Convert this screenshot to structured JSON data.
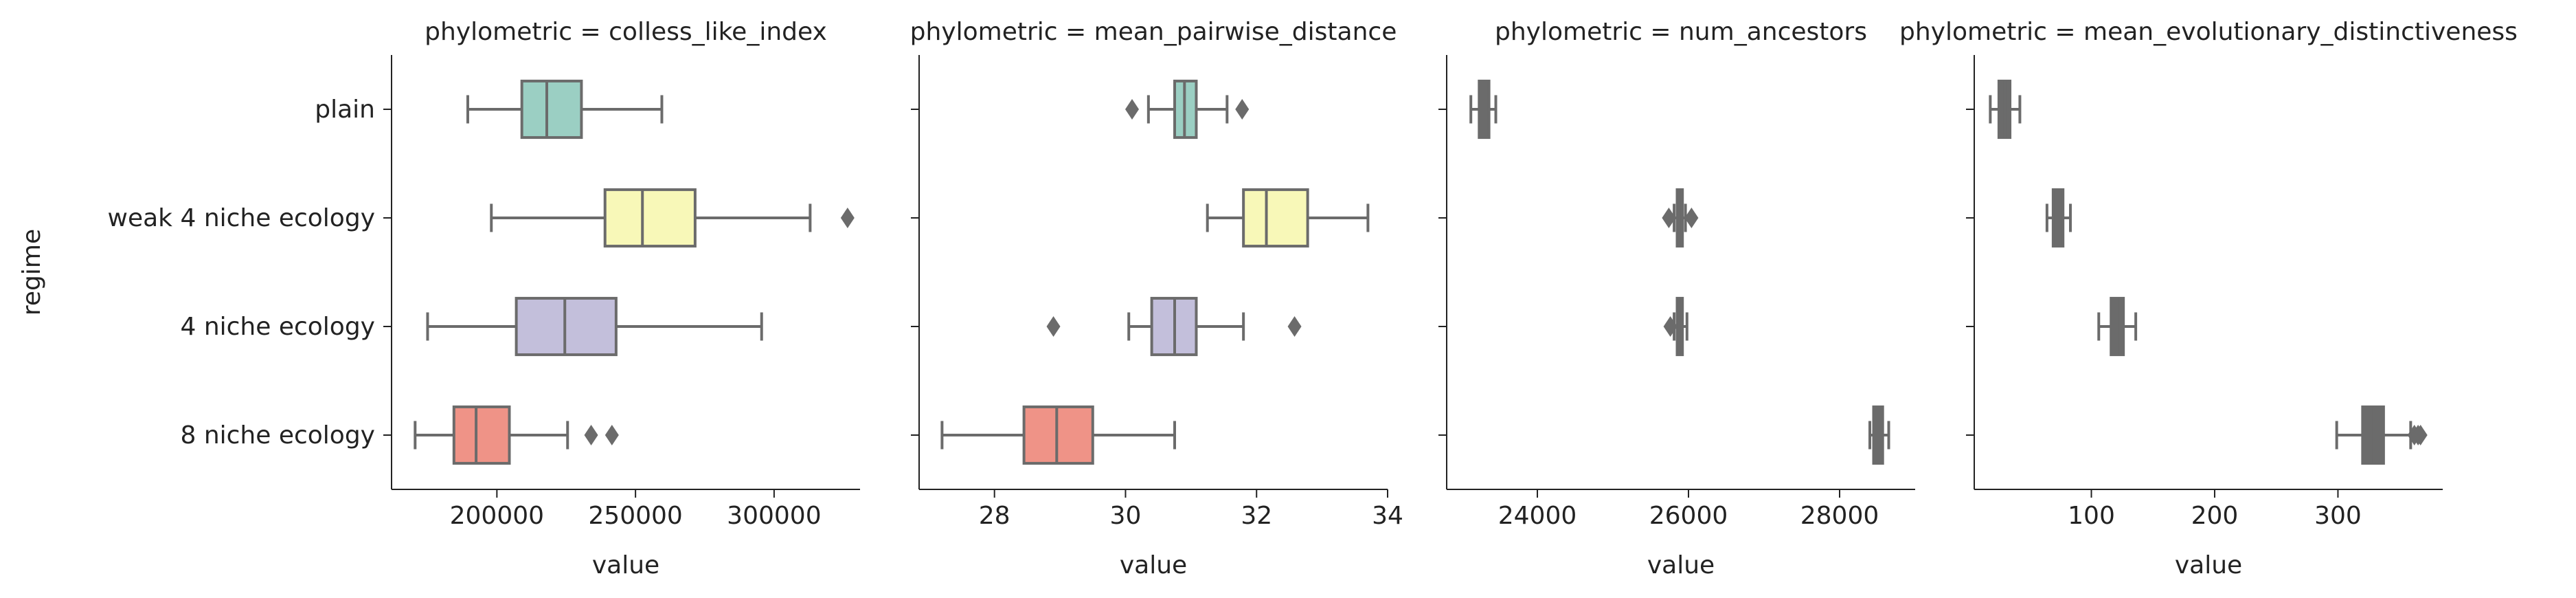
{
  "chart_data": {
    "type": "boxplot",
    "facet_label": "phylometric",
    "ylabel": "regime",
    "categories": [
      "plain",
      "weak 4 niche ecology",
      "4 niche ecology",
      "8 niche ecology"
    ],
    "colors": [
      "#9bcfc3",
      "#f8f8b8",
      "#c3bfdb",
      "#ef9387"
    ],
    "colored_facets": [
      true,
      true,
      false,
      false
    ],
    "panels": [
      {
        "title": "phylometric = colless_like_index",
        "xlabel": "value",
        "xlim": [
          162000,
          331000
        ],
        "xticks": [
          200000,
          250000,
          300000
        ],
        "boxes": [
          {
            "category": "plain",
            "whislo": 189500,
            "q1": 209000,
            "median": 218000,
            "q3": 230500,
            "whishi": 259500,
            "fliers": []
          },
          {
            "category": "weak 4 niche ecology",
            "whislo": 198000,
            "q1": 239000,
            "median": 252500,
            "q3": 271500,
            "whishi": 313000,
            "fliers": [
              326500
            ]
          },
          {
            "category": "4 niche ecology",
            "whislo": 175000,
            "q1": 207000,
            "median": 224500,
            "q3": 243000,
            "whishi": 295500,
            "fliers": []
          },
          {
            "category": "8 niche ecology",
            "whislo": 170500,
            "q1": 184500,
            "median": 192500,
            "q3": 204500,
            "whishi": 225500,
            "fliers": [
              234000,
              241500
            ]
          }
        ]
      },
      {
        "title": "phylometric = mean_pairwise_distance",
        "xlabel": "value",
        "xlim": [
          26.85,
          34.0
        ],
        "xticks": [
          28,
          30,
          32,
          34
        ],
        "boxes": [
          {
            "category": "plain",
            "whislo": 30.35,
            "q1": 30.75,
            "median": 30.9,
            "q3": 31.08,
            "whishi": 31.55,
            "fliers": [
              30.1,
              31.78
            ]
          },
          {
            "category": "weak 4 niche ecology",
            "whislo": 31.25,
            "q1": 31.8,
            "median": 32.15,
            "q3": 32.78,
            "whishi": 33.7,
            "fliers": []
          },
          {
            "category": "4 niche ecology",
            "whislo": 30.05,
            "q1": 30.4,
            "median": 30.75,
            "q3": 31.08,
            "whishi": 31.8,
            "fliers": [
              28.9,
              32.58
            ]
          },
          {
            "category": "8 niche ecology",
            "whislo": 27.2,
            "q1": 28.45,
            "median": 28.95,
            "q3": 29.5,
            "whishi": 30.75,
            "fliers": []
          }
        ]
      },
      {
        "title": "phylometric = num_ancestors",
        "xlabel": "value",
        "xlim": [
          22800,
          29000
        ],
        "xticks": [
          24000,
          26000,
          28000
        ],
        "boxes": [
          {
            "category": "plain",
            "whislo": 23120,
            "q1": 23230,
            "median": 23290,
            "q3": 23360,
            "whishi": 23450,
            "fliers": []
          },
          {
            "category": "weak 4 niche ecology",
            "whislo": 25810,
            "q1": 25850,
            "median": 25880,
            "q3": 25920,
            "whishi": 25960,
            "fliers": [
              25740,
              26040
            ]
          },
          {
            "category": "4 niche ecology",
            "whislo": 25810,
            "q1": 25850,
            "median": 25880,
            "q3": 25920,
            "whishi": 25980,
            "fliers": [
              25760
            ]
          },
          {
            "category": "8 niche ecology",
            "whislo": 28400,
            "q1": 28450,
            "median": 28500,
            "q3": 28570,
            "whishi": 28650,
            "fliers": []
          }
        ]
      },
      {
        "title": "phylometric = mean_evolutionary_distinctiveness",
        "xlabel": "value",
        "xlim": [
          5,
          385
        ],
        "xticks": [
          100,
          200,
          300
        ],
        "boxes": [
          {
            "category": "plain",
            "whislo": 18,
            "q1": 25,
            "median": 30,
            "q3": 34,
            "whishi": 42,
            "fliers": []
          },
          {
            "category": "weak 4 niche ecology",
            "whislo": 64,
            "q1": 69,
            "median": 73,
            "q3": 77,
            "whishi": 83,
            "fliers": []
          },
          {
            "category": "4 niche ecology",
            "whislo": 106,
            "q1": 116,
            "median": 121,
            "q3": 126,
            "whishi": 136,
            "fliers": []
          },
          {
            "category": "8 niche ecology",
            "whislo": 299,
            "q1": 320,
            "median": 329,
            "q3": 337,
            "whishi": 359,
            "fliers": [
              362,
              365,
              367
            ]
          }
        ]
      }
    ]
  }
}
